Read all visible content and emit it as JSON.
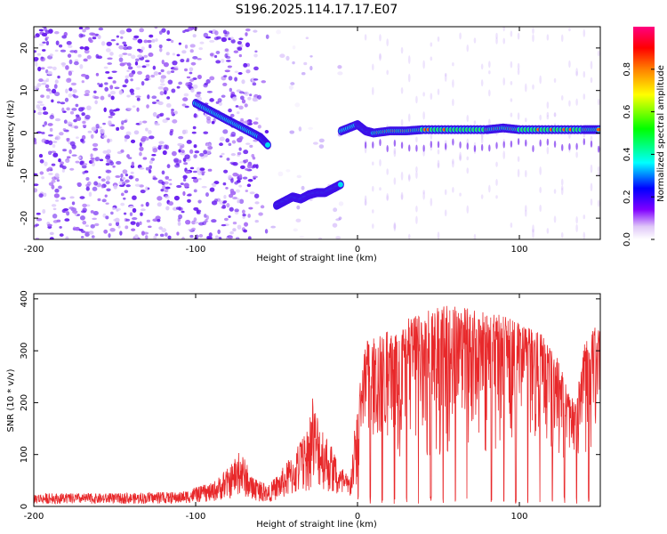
{
  "chart_data": [
    {
      "type": "heatmap",
      "title": "S196.2025.114.17.17.E07",
      "xlabel": "Height of straight line (km)",
      "ylabel": "Frequency (Hz)",
      "xlim": [
        -200,
        150
      ],
      "ylim": [
        -25,
        25
      ],
      "xticks": [
        -200,
        -100,
        0,
        100
      ],
      "yticks": [
        -20,
        -10,
        0,
        10,
        20
      ],
      "colorbar": {
        "label": "Normalized spectral amplitude",
        "range": [
          0,
          1
        ],
        "ticks": [
          "0.0",
          "0.2",
          "0.4",
          "0.6",
          "0.8"
        ],
        "colormap": [
          "#ffffff",
          "#e0c8f8",
          "#8000ff",
          "#0000ff",
          "#00ffff",
          "#00ff00",
          "#ffff00",
          "#ff8000",
          "#ff0000",
          "#ff0080"
        ]
      },
      "tracks": [
        {
          "x": [
            -100,
            -90,
            -80,
            -70,
            -60,
            -55
          ],
          "y": [
            7,
            5,
            3,
            1,
            -1,
            -3
          ]
        },
        {
          "x": [
            -50,
            -45,
            -40,
            -35,
            -30,
            -25,
            -20,
            -15,
            -10
          ],
          "y": [
            -17,
            -16,
            -15,
            -15.5,
            -14.5,
            -14,
            -14,
            -13,
            -12
          ]
        },
        {
          "x": [
            -10,
            0,
            5,
            10,
            20,
            30,
            40,
            60,
            80,
            90,
            100,
            120,
            140,
            150
          ],
          "y": [
            0.5,
            2,
            0.5,
            0,
            0.5,
            0.5,
            0.8,
            0.8,
            0.8,
            1.2,
            0.8,
            0.8,
            0.8,
            0.8
          ]
        }
      ]
    },
    {
      "type": "line",
      "title": "",
      "xlabel": "Height of straight line (km)",
      "ylabel": "SNR (10 * v/v)",
      "xlim": [
        -200,
        150
      ],
      "ylim": [
        0,
        410
      ],
      "xticks": [
        -200,
        -100,
        0,
        100
      ],
      "yticks": [
        0,
        100,
        200,
        300,
        400
      ],
      "color": "#e8282a",
      "envelope": [
        {
          "x": -200,
          "y": 25
        },
        {
          "x": -150,
          "y": 25
        },
        {
          "x": -110,
          "y": 28
        },
        {
          "x": -90,
          "y": 45
        },
        {
          "x": -78,
          "y": 80
        },
        {
          "x": -72,
          "y": 110
        },
        {
          "x": -65,
          "y": 55
        },
        {
          "x": -55,
          "y": 40
        },
        {
          "x": -40,
          "y": 100
        },
        {
          "x": -30,
          "y": 150
        },
        {
          "x": -28,
          "y": 210
        },
        {
          "x": -20,
          "y": 150
        },
        {
          "x": -12,
          "y": 80
        },
        {
          "x": -5,
          "y": 60
        },
        {
          "x": 0,
          "y": 200
        },
        {
          "x": 5,
          "y": 320
        },
        {
          "x": 20,
          "y": 340
        },
        {
          "x": 40,
          "y": 380
        },
        {
          "x": 60,
          "y": 390
        },
        {
          "x": 80,
          "y": 375
        },
        {
          "x": 100,
          "y": 360
        },
        {
          "x": 115,
          "y": 330
        },
        {
          "x": 125,
          "y": 280
        },
        {
          "x": 130,
          "y": 220
        },
        {
          "x": 135,
          "y": 200
        },
        {
          "x": 140,
          "y": 320
        },
        {
          "x": 150,
          "y": 360
        }
      ]
    }
  ]
}
